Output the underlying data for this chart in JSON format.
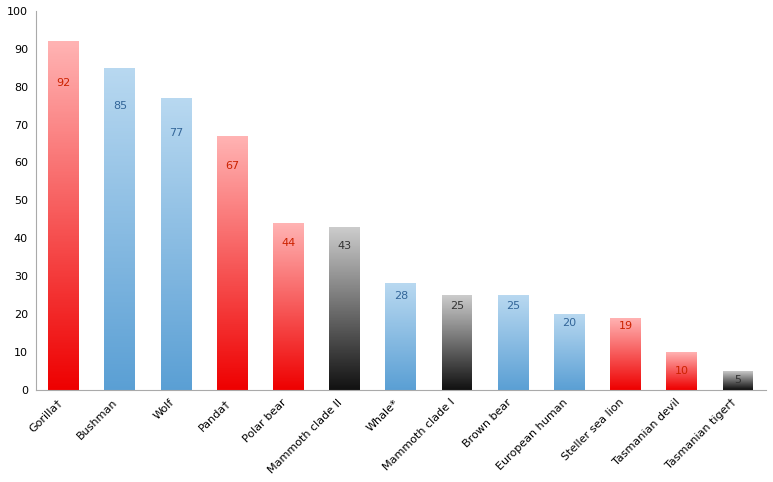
{
  "categories": [
    "Gorilla†",
    "Bushman",
    "Wolf",
    "Panda†",
    "Polar bear",
    "Mammoth clade II",
    "Whale*",
    "Mammoth clade I",
    "Brown bear",
    "European human",
    "Steller sea lion",
    "Tasmanian devil",
    "Tasmanian tiger†"
  ],
  "values": [
    92,
    85,
    77,
    67,
    44,
    43,
    28,
    25,
    25,
    20,
    19,
    10,
    5
  ],
  "bar_colors": [
    "red_pink",
    "blue",
    "blue",
    "red_pink",
    "red_pink",
    "gray_dark",
    "blue",
    "gray_dark",
    "blue",
    "blue",
    "red_pink",
    "red_pink",
    "gray_dark"
  ],
  "ylim": [
    0,
    100
  ],
  "yticks": [
    0,
    10,
    20,
    30,
    40,
    50,
    60,
    70,
    80,
    90,
    100
  ],
  "background_color": "#ffffff",
  "bar_width": 0.55,
  "colors": {
    "red_pink_top": "#ffb3b3",
    "red_pink_bottom": "#ee0000",
    "blue_top": "#b8d8f0",
    "blue_bottom": "#5a9fd4",
    "gray_top": "#cccccc",
    "gray_bottom": "#111111"
  },
  "label_color_red": "#cc2200",
  "label_color_blue": "#336699",
  "label_color_gray": "#333333",
  "label_fontsize": 8,
  "tick_fontsize": 8,
  "xlabel_fontsize": 8
}
